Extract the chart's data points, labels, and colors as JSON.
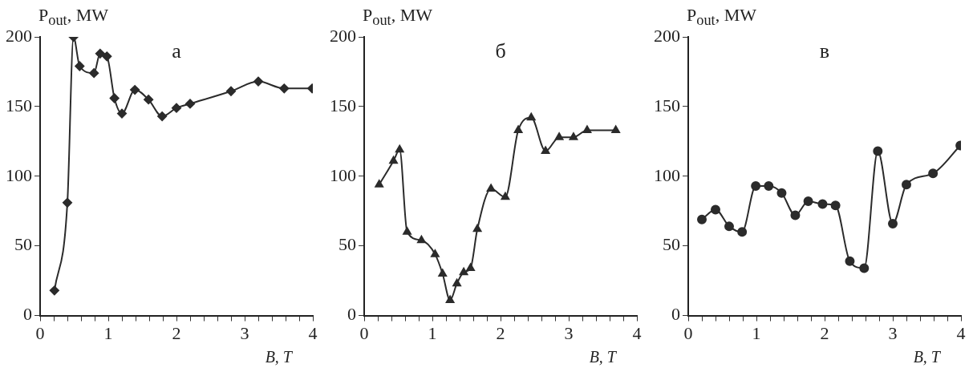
{
  "chart_data": [
    {
      "type": "line",
      "annotations": [
        "а"
      ],
      "xlabel": "B, T",
      "ylabel": "P$_{out}$, MW",
      "marker": "diamond",
      "grid": false,
      "legend": false,
      "line_style": "solid",
      "xlim": [
        0,
        4
      ],
      "ylim": [
        0,
        200
      ],
      "yticks": [
        0,
        50,
        100,
        150,
        200
      ],
      "xticks": [
        0,
        {
          "value": 0.2,
          "label": null
        },
        {
          "value": 0.4,
          "label": null
        },
        {
          "value": 0.6,
          "label": null
        },
        {
          "value": 0.8,
          "label": null
        },
        1,
        {
          "value": 1.2,
          "label": null
        },
        {
          "value": 1.4,
          "label": null
        },
        {
          "value": 1.6,
          "label": null
        },
        {
          "value": 1.8,
          "label": null
        },
        2,
        {
          "value": 2.2,
          "label": null
        },
        {
          "value": 2.4,
          "label": null
        },
        {
          "value": 2.6,
          "label": null
        },
        {
          "value": 2.8,
          "label": null
        },
        3,
        {
          "value": 3.2,
          "label": null
        },
        {
          "value": 3.4,
          "label": null
        },
        {
          "value": 3.6,
          "label": null
        },
        {
          "value": 3.8,
          "label": null
        },
        4
      ],
      "series": [
        {
          "color": "#2b2b2b",
          "x": [
            0.21,
            0.4,
            0.49,
            0.58,
            0.79,
            0.88,
            0.98,
            1.09,
            1.2,
            1.39,
            1.59,
            1.79,
            2.0,
            2.2,
            2.8,
            3.2,
            3.58,
            3.99
          ],
          "values": [
            18,
            81,
            200,
            179,
            174,
            188,
            186,
            156,
            145,
            162,
            155,
            143,
            149,
            152,
            161,
            168,
            163,
            163
          ]
        }
      ]
    },
    {
      "type": "line",
      "annotations": [
        "б"
      ],
      "xlabel": "B, T",
      "ylabel": "P$_{out}$, MW",
      "marker": "triangle",
      "grid": false,
      "legend": false,
      "line_style": "solid",
      "xlim": [
        0,
        4
      ],
      "ylim": [
        0,
        200
      ],
      "yticks": [
        0,
        50,
        100,
        150,
        200
      ],
      "xticks": [
        0,
        {
          "value": 0.2,
          "label": null
        },
        {
          "value": 0.4,
          "label": null
        },
        {
          "value": 0.6,
          "label": null
        },
        {
          "value": 0.8,
          "label": null
        },
        1,
        {
          "value": 1.2,
          "label": null
        },
        {
          "value": 1.4,
          "label": null
        },
        {
          "value": 1.6,
          "label": null
        },
        {
          "value": 1.8,
          "label": null
        },
        2,
        {
          "value": 2.2,
          "label": null
        },
        {
          "value": 2.4,
          "label": null
        },
        {
          "value": 2.6,
          "label": null
        },
        {
          "value": 2.8,
          "label": null
        },
        3,
        {
          "value": 3.2,
          "label": null
        },
        {
          "value": 3.4,
          "label": null
        },
        {
          "value": 3.6,
          "label": null
        },
        {
          "value": 3.8,
          "label": null
        },
        4
      ],
      "series": [
        {
          "color": "#2b2b2b",
          "x": [
            0.22,
            0.43,
            0.52,
            0.63,
            0.84,
            1.04,
            1.15,
            1.26,
            1.36,
            1.46,
            1.56,
            1.66,
            1.86,
            2.07,
            2.26,
            2.45,
            2.66,
            2.86,
            3.07,
            3.27,
            3.69
          ],
          "values": [
            94,
            111,
            119,
            60,
            54,
            44,
            30,
            11,
            23,
            31,
            34,
            62,
            91,
            85,
            133,
            142,
            118,
            128,
            128,
            133,
            133
          ]
        }
      ]
    },
    {
      "type": "line",
      "annotations": [
        "в"
      ],
      "xlabel": "B, T",
      "ylabel": "P$_{out}$, MW",
      "marker": "circle",
      "grid": false,
      "legend": false,
      "line_style": "solid",
      "xlim": [
        0,
        4
      ],
      "ylim": [
        0,
        200
      ],
      "yticks": [
        0,
        50,
        100,
        150,
        200
      ],
      "xticks": [
        0,
        {
          "value": 0.2,
          "label": null
        },
        {
          "value": 0.4,
          "label": null
        },
        {
          "value": 0.6,
          "label": null
        },
        {
          "value": 0.8,
          "label": null
        },
        1,
        {
          "value": 1.2,
          "label": null
        },
        {
          "value": 1.4,
          "label": null
        },
        {
          "value": 1.6,
          "label": null
        },
        {
          "value": 1.8,
          "label": null
        },
        2,
        {
          "value": 2.2,
          "label": null
        },
        {
          "value": 2.4,
          "label": null
        },
        {
          "value": 2.6,
          "label": null
        },
        {
          "value": 2.8,
          "label": null
        },
        3,
        {
          "value": 3.2,
          "label": null
        },
        {
          "value": 3.4,
          "label": null
        },
        {
          "value": 3.6,
          "label": null
        },
        {
          "value": 3.8,
          "label": null
        },
        4
      ],
      "series": [
        {
          "color": "#2b2b2b",
          "x": [
            0.2,
            0.4,
            0.6,
            0.79,
            0.99,
            1.18,
            1.37,
            1.57,
            1.76,
            1.97,
            2.16,
            2.37,
            2.58,
            2.78,
            3.0,
            3.2,
            3.59,
            3.99
          ],
          "values": [
            69,
            76,
            64,
            60,
            93,
            93,
            88,
            72,
            82,
            80,
            79,
            39,
            34,
            118,
            66,
            94,
            102,
            122
          ]
        }
      ]
    }
  ]
}
